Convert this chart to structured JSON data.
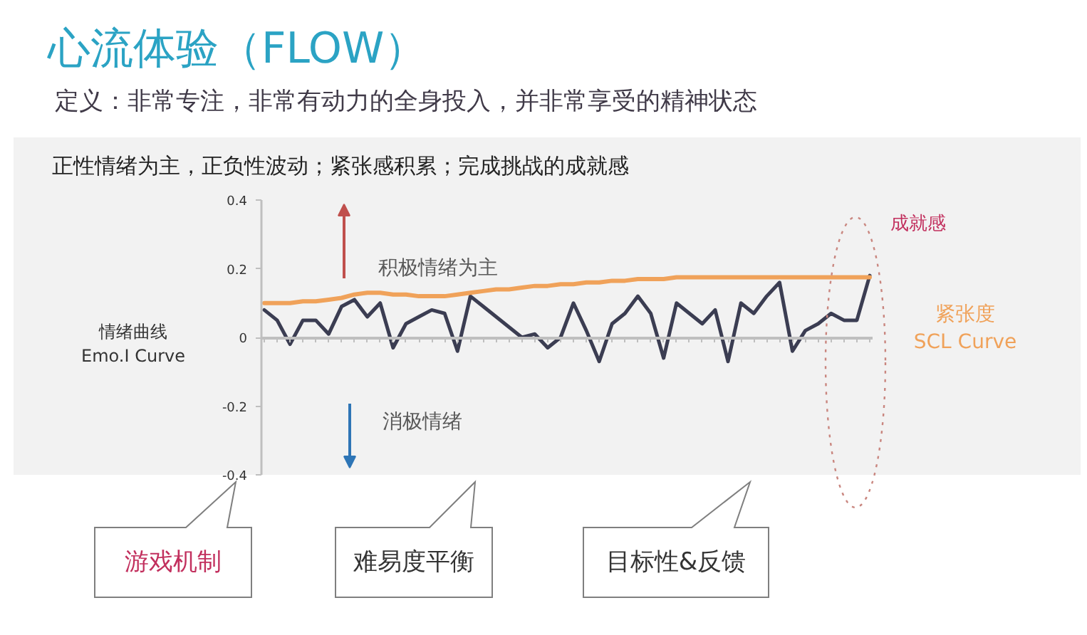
{
  "chart_data": {
    "type": "line",
    "title": "心流体验（FLOW）",
    "subtitle": "定义：非常专注，非常有动力的全身投入，并非常享受的精神状态",
    "ylabel": "情绪曲线\nEmo.I Curve",
    "categories": [
      null,
      null,
      null,
      null,
      null,
      null,
      null,
      null,
      null,
      null,
      null,
      null,
      null,
      null,
      null,
      null,
      null,
      null,
      null,
      null,
      null,
      null,
      null,
      null,
      null,
      null,
      null,
      null,
      null,
      null,
      null,
      null,
      null,
      null,
      null,
      null,
      null,
      null,
      null,
      null,
      null,
      null,
      null,
      null,
      null,
      null,
      null,
      null
    ],
    "series": [
      {
        "color": "#3b3d52",
        "values": [
          0.08,
          0.05,
          -0.02,
          0.05,
          0.05,
          0.01,
          0.09,
          0.11,
          0.06,
          0.1,
          -0.03,
          0.04,
          0.06,
          0.08,
          0.07,
          -0.04,
          0.12,
          0.09,
          0.06,
          0.03,
          0,
          0.01,
          -0.03,
          0,
          0.1,
          0.02,
          -0.07,
          0.04,
          0.07,
          0.12,
          0.07,
          -0.06,
          0.1,
          0.07,
          0.04,
          0.08,
          -0.07,
          0.1,
          0.07,
          0.12,
          0.16,
          -0.04,
          0.02,
          0.04,
          0.07,
          0.05,
          0.05,
          0.18
        ]
      },
      {
        "name": "紧张度\nSCL Curve",
        "color": "#f0a25a",
        "values": [
          0.1,
          0.1,
          0.1,
          0.105,
          0.105,
          0.11,
          0.115,
          0.125,
          0.13,
          0.13,
          0.125,
          0.125,
          0.12,
          0.12,
          0.12,
          0.125,
          0.13,
          0.135,
          0.14,
          0.14,
          0.145,
          0.15,
          0.15,
          0.155,
          0.155,
          0.16,
          0.16,
          0.165,
          0.165,
          0.17,
          0.17,
          0.17,
          0.175,
          0.175,
          0.175,
          0.175,
          0.175,
          0.175,
          0.175,
          0.175,
          0.175,
          0.175,
          0.175,
          0.175,
          0.175,
          0.175,
          0.175,
          0.175
        ]
      }
    ],
    "ylim": [
      -0.4,
      0.4
    ],
    "yticks": [
      -0.4,
      -0.2,
      0,
      0.2,
      0.4
    ],
    "line_style": "solid",
    "annotations": [
      "正性情绪为主，正负性波动；紧张感积累；完成挑战的成就感",
      "积极情绪为主",
      "消极情绪",
      "成就感",
      "游戏机制",
      "难易度平衡",
      "目标性&反馈"
    ]
  }
}
